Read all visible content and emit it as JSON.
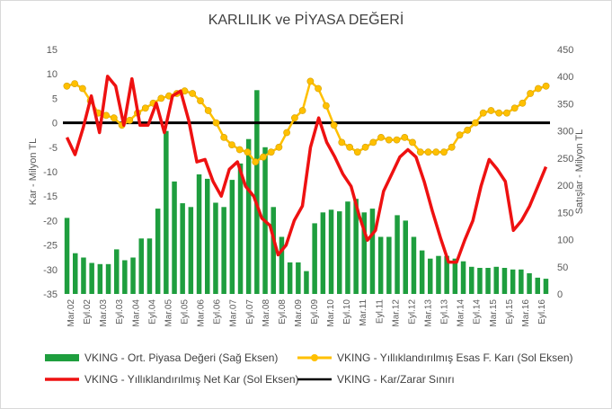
{
  "chart_data": {
    "type": "bar+line",
    "title": "KARLILIK ve PİYASA DEĞERİ",
    "ylabel_left": "Kar - Milyon TL",
    "ylabel_right": "Satışlar - Milyon TL",
    "ylim_left": [
      -35,
      15
    ],
    "ylim_right": [
      0,
      450
    ],
    "yticks_left": [
      "15",
      "10",
      "5",
      "0",
      "-5",
      "-10",
      "-15",
      "-20",
      "-25",
      "-30",
      "-35"
    ],
    "yticks_right": [
      "450",
      "400",
      "350",
      "300",
      "250",
      "200",
      "150",
      "100",
      "50",
      "0"
    ],
    "x_tick_labels": [
      "Mar.02",
      "Eyl.02",
      "Mar.03",
      "Eyl.03",
      "Mar.04",
      "Eyl.04",
      "Mar.05",
      "Eyl.05",
      "Mar.06",
      "Eyl.06",
      "Mar.07",
      "Eyl.07",
      "Mar.08",
      "Eyl.08",
      "Mar.09",
      "Eyl.09",
      "Mar.10",
      "Eyl.10",
      "Mar.11",
      "Eyl.11",
      "Mar.12",
      "Eyl.12",
      "Mar.13",
      "Eyl.13",
      "Mar.14",
      "Eyl.14",
      "Mar.15",
      "Eyl.15",
      "Mar.16",
      "Eyl.16"
    ],
    "grid": false,
    "legend_position": "bottom",
    "series": [
      {
        "name": "VKING - Ort. Piyasa Değeri (Sağ Eksen)",
        "type": "bar",
        "axis": "right",
        "color": "#1e9e3e",
        "values": [
          140,
          75,
          67,
          57,
          55,
          55,
          82,
          62,
          67,
          102,
          102,
          157,
          300,
          207,
          167,
          160,
          220,
          212,
          168,
          160,
          210,
          240,
          285,
          375,
          270,
          160,
          105,
          58,
          58,
          42,
          130,
          150,
          155,
          152,
          170,
          175,
          150,
          157,
          105,
          105,
          145,
          135,
          105,
          80,
          65,
          70,
          70,
          65,
          60,
          50,
          48,
          48,
          50,
          48,
          45,
          45,
          38,
          30,
          28
        ]
      },
      {
        "name": "VKING - Yıllıklandırılmış Esas F. Karı (Sol Eksen)",
        "type": "line",
        "axis": "left",
        "color": "#ffc000",
        "values": [
          7.5,
          8,
          7,
          4.5,
          2,
          1.5,
          1,
          -0.5,
          0.5,
          2,
          3,
          4,
          5,
          5.5,
          6,
          6.5,
          6,
          4.5,
          2.5,
          0,
          -3,
          -4.5,
          -5.5,
          -6,
          -8,
          -7,
          -6,
          -5,
          -2,
          1,
          2.5,
          8.5,
          7,
          3.5,
          -0.5,
          -4,
          -5,
          -6,
          -5,
          -4,
          -3,
          -3.5,
          -3.5,
          -3,
          -4,
          -6,
          -6,
          -6,
          -6,
          -5,
          -2.5,
          -1.5,
          0,
          2,
          2.5,
          2,
          2,
          3,
          4,
          6,
          7,
          7.5
        ]
      },
      {
        "name": "VKING - Yıllıklandırılmış Net Kar (Sol Eksen)",
        "type": "line",
        "axis": "left",
        "color": "#ee1111",
        "values": [
          -3,
          -6.5,
          -1,
          5.5,
          -2,
          9.5,
          7.5,
          -0.5,
          9,
          -0.5,
          -0.5,
          4,
          -2,
          5.5,
          6.5,
          0.5,
          -8,
          -7.5,
          -12,
          -15,
          -9.5,
          -8,
          -13,
          -15,
          -19.5,
          -21,
          -27,
          -25,
          -20,
          -17,
          -5,
          1,
          -4,
          -7,
          -10.5,
          -13,
          -19,
          -24,
          -22,
          -14,
          -10.5,
          -7,
          -5.5,
          -7,
          -12,
          -18,
          -23.5,
          -28.5,
          -28.5,
          -24,
          -20,
          -13,
          -7.5,
          -9.5,
          -12,
          -22,
          -20,
          -17,
          -13,
          -9
        ]
      },
      {
        "name": "VKING - Kar/Zarar Sınırı",
        "type": "line",
        "axis": "left",
        "color": "#000000",
        "values": [
          0,
          0
        ]
      }
    ]
  }
}
